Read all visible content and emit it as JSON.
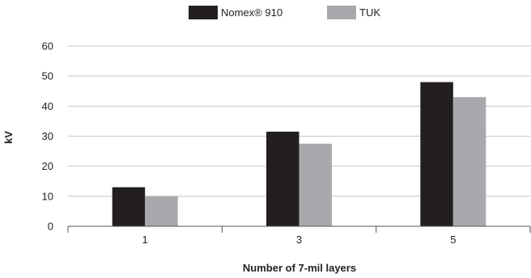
{
  "chart_data": {
    "type": "bar",
    "categories": [
      "1",
      "3",
      "5"
    ],
    "series": [
      {
        "name": "Nomex® 910",
        "values": [
          13,
          31.5,
          48
        ]
      },
      {
        "name": "TUK",
        "values": [
          10,
          27.5,
          43
        ]
      }
    ],
    "colors": [
      "#231f20",
      "#a7a9ac"
    ],
    "title": "",
    "xlabel": "Number of 7-mil layers",
    "ylabel": "kV",
    "ylim": [
      0,
      60
    ],
    "yticks": [
      "0",
      "10",
      "20",
      "30",
      "40",
      "50",
      "60"
    ],
    "grid": true,
    "legend_position": "top-center"
  }
}
